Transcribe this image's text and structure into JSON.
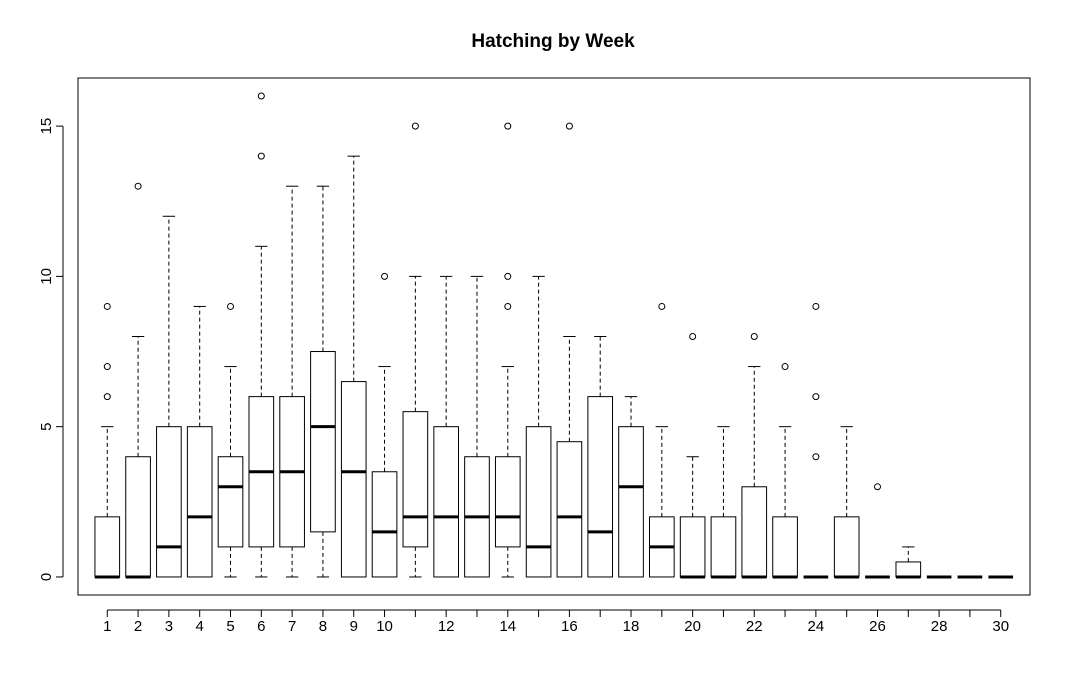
{
  "chart_data": {
    "type": "box",
    "title": "Hatching by Week",
    "xlabel": "",
    "ylabel": "",
    "ylim": [
      -0.6,
      16.6
    ],
    "xlim": [
      0.05,
      30.95
    ],
    "y_ticks": [
      0,
      5,
      10,
      15
    ],
    "x_tick_labels_shown": [
      "1",
      "2",
      "3",
      "4",
      "5",
      "6",
      "7",
      "8",
      "9",
      "10",
      "12",
      "14",
      "16",
      "18",
      "20",
      "22",
      "24",
      "26",
      "28",
      "30"
    ],
    "grid": false,
    "boxes": [
      {
        "week": 1,
        "q1": 0,
        "median": 0,
        "q3": 2,
        "lower": 0,
        "upper": 5,
        "outliers": [
          6,
          7,
          9
        ]
      },
      {
        "week": 2,
        "q1": 0,
        "median": 0,
        "q3": 4,
        "lower": 0,
        "upper": 8,
        "outliers": [
          13
        ]
      },
      {
        "week": 3,
        "q1": 0,
        "median": 1,
        "q3": 5,
        "lower": 0,
        "upper": 12,
        "outliers": []
      },
      {
        "week": 4,
        "q1": 0,
        "median": 2,
        "q3": 5,
        "lower": 0,
        "upper": 9,
        "outliers": []
      },
      {
        "week": 5,
        "q1": 1,
        "median": 3,
        "q3": 4,
        "lower": 0,
        "upper": 7,
        "outliers": [
          9
        ]
      },
      {
        "week": 6,
        "q1": 1,
        "median": 3.5,
        "q3": 6,
        "lower": 0,
        "upper": 11,
        "outliers": [
          14,
          16
        ]
      },
      {
        "week": 7,
        "q1": 1,
        "median": 3.5,
        "q3": 6,
        "lower": 0,
        "upper": 13,
        "outliers": []
      },
      {
        "week": 8,
        "q1": 1.5,
        "median": 5,
        "q3": 7.5,
        "lower": 0,
        "upper": 13,
        "outliers": []
      },
      {
        "week": 9,
        "q1": 0,
        "median": 3.5,
        "q3": 6.5,
        "lower": 0,
        "upper": 14,
        "outliers": []
      },
      {
        "week": 10,
        "q1": 0,
        "median": 1.5,
        "q3": 3.5,
        "lower": 0,
        "upper": 7,
        "outliers": [
          10
        ]
      },
      {
        "week": 11,
        "q1": 1,
        "median": 2,
        "q3": 5.5,
        "lower": 0,
        "upper": 10,
        "outliers": [
          15
        ]
      },
      {
        "week": 12,
        "q1": 0,
        "median": 2,
        "q3": 5,
        "lower": 0,
        "upper": 10,
        "outliers": []
      },
      {
        "week": 13,
        "q1": 0,
        "median": 2,
        "q3": 4,
        "lower": 0,
        "upper": 10,
        "outliers": []
      },
      {
        "week": 14,
        "q1": 1,
        "median": 2,
        "q3": 4,
        "lower": 0,
        "upper": 7,
        "outliers": [
          9,
          10,
          15
        ]
      },
      {
        "week": 15,
        "q1": 0,
        "median": 1,
        "q3": 5,
        "lower": 0,
        "upper": 10,
        "outliers": []
      },
      {
        "week": 16,
        "q1": 0,
        "median": 2,
        "q3": 4.5,
        "lower": 0,
        "upper": 8,
        "outliers": [
          15
        ]
      },
      {
        "week": 17,
        "q1": 0,
        "median": 1.5,
        "q3": 6,
        "lower": 0,
        "upper": 8,
        "outliers": []
      },
      {
        "week": 18,
        "q1": 0,
        "median": 3,
        "q3": 5,
        "lower": 0,
        "upper": 6,
        "outliers": []
      },
      {
        "week": 19,
        "q1": 0,
        "median": 1,
        "q3": 2,
        "lower": 0,
        "upper": 5,
        "outliers": [
          9
        ]
      },
      {
        "week": 20,
        "q1": 0,
        "median": 0,
        "q3": 2,
        "lower": 0,
        "upper": 4,
        "outliers": [
          8
        ]
      },
      {
        "week": 21,
        "q1": 0,
        "median": 0,
        "q3": 2,
        "lower": 0,
        "upper": 5,
        "outliers": []
      },
      {
        "week": 22,
        "q1": 0,
        "median": 0,
        "q3": 3,
        "lower": 0,
        "upper": 7,
        "outliers": [
          8
        ]
      },
      {
        "week": 23,
        "q1": 0,
        "median": 0,
        "q3": 2,
        "lower": 0,
        "upper": 5,
        "outliers": [
          7
        ]
      },
      {
        "week": 24,
        "q1": 0,
        "median": 0,
        "q3": 0,
        "lower": 0,
        "upper": 0,
        "outliers": [
          4,
          6,
          9
        ]
      },
      {
        "week": 25,
        "q1": 0,
        "median": 0,
        "q3": 2,
        "lower": 0,
        "upper": 5,
        "outliers": []
      },
      {
        "week": 26,
        "q1": 0,
        "median": 0,
        "q3": 0,
        "lower": 0,
        "upper": 0,
        "outliers": [
          3
        ]
      },
      {
        "week": 27,
        "q1": 0,
        "median": 0,
        "q3": 0.5,
        "lower": 0,
        "upper": 1,
        "outliers": []
      },
      {
        "week": 28,
        "q1": 0,
        "median": 0,
        "q3": 0,
        "lower": 0,
        "upper": 0,
        "outliers": []
      },
      {
        "week": 29,
        "q1": 0,
        "median": 0,
        "q3": 0,
        "lower": 0,
        "upper": 0,
        "outliers": []
      },
      {
        "week": 30,
        "q1": 0,
        "median": 0,
        "q3": 0,
        "lower": 0,
        "upper": 0,
        "outliers": []
      }
    ]
  }
}
